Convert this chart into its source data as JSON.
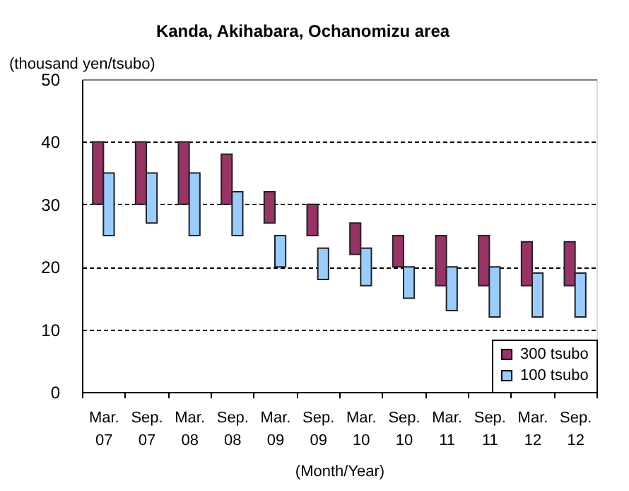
{
  "chart_data": {
    "type": "bar",
    "title": "Kanda, Akihabara, Ochanomizu area",
    "xlabel": "(Month/Year)",
    "ylabel": "(thousand yen/tsubo)",
    "categories": [
      "Mar. 07",
      "Sep. 07",
      "Mar. 08",
      "Sep. 08",
      "Mar. 09",
      "Sep. 09",
      "Mar. 10",
      "Sep. 10",
      "Mar. 11",
      "Sep. 11",
      "Mar. 12",
      "Sep. 12"
    ],
    "series": [
      {
        "name": "300 tsubo",
        "color": "#993366",
        "base": [
          30,
          30,
          30,
          30,
          27,
          25,
          22,
          20,
          17,
          17,
          17,
          17
        ],
        "values": [
          10,
          10,
          10,
          8,
          5,
          5,
          5,
          5,
          8,
          8,
          7,
          7
        ]
      },
      {
        "name": "100 tsubo",
        "color": "#99ccff",
        "base": [
          25,
          27,
          25,
          25,
          20,
          18,
          17,
          15,
          13,
          12,
          12,
          12
        ],
        "values": [
          10,
          8,
          10,
          7,
          5,
          5,
          6,
          5,
          7,
          8,
          7,
          7
        ]
      }
    ],
    "ylim": [
      0,
      50
    ],
    "yticks": [
      0,
      10,
      20,
      30,
      40,
      50
    ],
    "grid": "y",
    "legend": "bottom right"
  }
}
